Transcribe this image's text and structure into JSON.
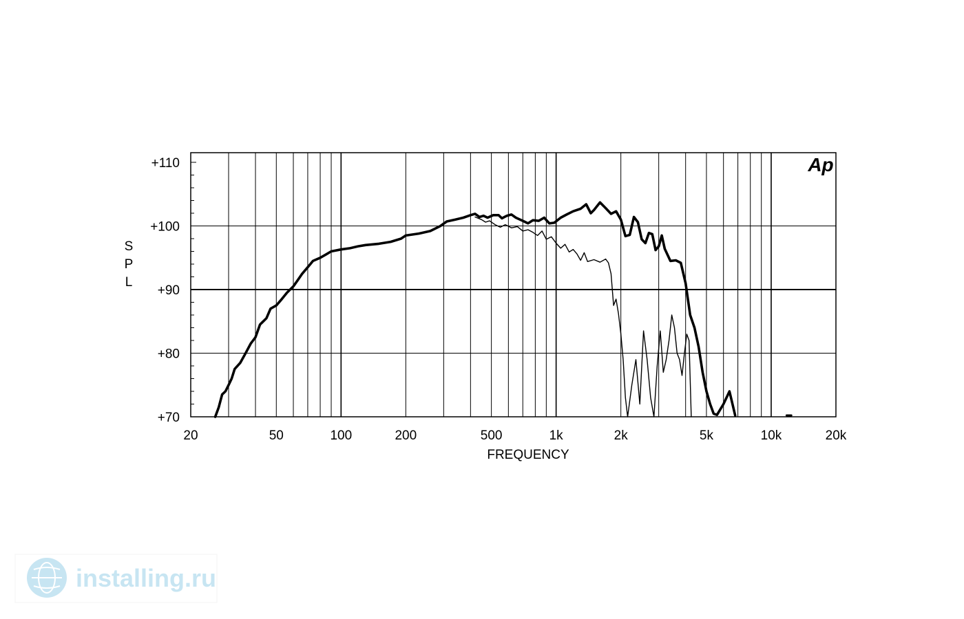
{
  "chart_data": {
    "type": "line",
    "title": "",
    "xlabel": "FREQUENCY",
    "ylabel": "SPL",
    "xscale": "log",
    "xlim": [
      20,
      20000
    ],
    "ylim": [
      70,
      111
    ],
    "grid": true,
    "x_ticks": [
      {
        "value": 20,
        "label": "20"
      },
      {
        "value": 50,
        "label": "50"
      },
      {
        "value": 100,
        "label": "100"
      },
      {
        "value": 200,
        "label": "200"
      },
      {
        "value": 500,
        "label": "500"
      },
      {
        "value": 1000,
        "label": "1k"
      },
      {
        "value": 2000,
        "label": "2k"
      },
      {
        "value": 5000,
        "label": "5k"
      },
      {
        "value": 10000,
        "label": "10k"
      },
      {
        "value": 20000,
        "label": "20k"
      }
    ],
    "y_ticks": [
      {
        "value": 70,
        "label": "+70"
      },
      {
        "value": 80,
        "label": "+80"
      },
      {
        "value": 90,
        "label": "+90"
      },
      {
        "value": 100,
        "label": "+100"
      },
      {
        "value": 110,
        "label": "+110"
      }
    ],
    "series": [
      {
        "style": "thick",
        "points": [
          [
            26,
            70
          ],
          [
            27,
            71.5
          ],
          [
            28,
            73.5
          ],
          [
            29,
            74
          ],
          [
            30,
            75
          ],
          [
            31,
            76
          ],
          [
            32,
            77.5
          ],
          [
            34,
            78.5
          ],
          [
            36,
            80
          ],
          [
            38,
            81.5
          ],
          [
            40,
            82.5
          ],
          [
            42,
            84.5
          ],
          [
            45,
            85.5
          ],
          [
            47,
            87
          ],
          [
            50,
            87.5
          ],
          [
            53,
            88.5
          ],
          [
            56,
            89.5
          ],
          [
            60,
            90.5
          ],
          [
            63,
            91.5
          ],
          [
            66,
            92.5
          ],
          [
            70,
            93.5
          ],
          [
            74,
            94.5
          ],
          [
            80,
            95
          ],
          [
            85,
            95.5
          ],
          [
            90,
            96
          ],
          [
            100,
            96.3
          ],
          [
            110,
            96.5
          ],
          [
            120,
            96.8
          ],
          [
            130,
            97
          ],
          [
            150,
            97.2
          ],
          [
            170,
            97.5
          ],
          [
            190,
            98
          ],
          [
            200,
            98.5
          ],
          [
            230,
            98.8
          ],
          [
            260,
            99.2
          ],
          [
            290,
            100
          ],
          [
            310,
            100.7
          ],
          [
            340,
            101
          ],
          [
            370,
            101.3
          ],
          [
            400,
            101.7
          ],
          [
            420,
            101.9
          ],
          [
            440,
            101.4
          ],
          [
            460,
            101.6
          ],
          [
            480,
            101.3
          ],
          [
            510,
            101.7
          ],
          [
            540,
            101.7
          ],
          [
            560,
            101.2
          ],
          [
            590,
            101.6
          ],
          [
            620,
            101.8
          ],
          [
            650,
            101.3
          ],
          [
            700,
            100.8
          ],
          [
            740,
            100.4
          ],
          [
            780,
            100.9
          ],
          [
            830,
            100.8
          ],
          [
            880,
            101.3
          ],
          [
            930,
            100.4
          ],
          [
            980,
            100.5
          ],
          [
            1050,
            101.3
          ],
          [
            1120,
            101.8
          ],
          [
            1200,
            102.3
          ],
          [
            1300,
            102.7
          ],
          [
            1380,
            103.4
          ],
          [
            1450,
            102
          ],
          [
            1500,
            102.5
          ],
          [
            1600,
            103.7
          ],
          [
            1700,
            102.8
          ],
          [
            1800,
            101.9
          ],
          [
            1900,
            102.3
          ],
          [
            2000,
            101
          ],
          [
            2100,
            98.4
          ],
          [
            2200,
            98.6
          ],
          [
            2300,
            101.4
          ],
          [
            2400,
            100.6
          ],
          [
            2500,
            97.9
          ],
          [
            2600,
            97.3
          ],
          [
            2700,
            98.9
          ],
          [
            2800,
            98.7
          ],
          [
            2900,
            96.2
          ],
          [
            3000,
            96.8
          ],
          [
            3100,
            98.5
          ],
          [
            3200,
            96.4
          ],
          [
            3400,
            94.5
          ],
          [
            3600,
            94.6
          ],
          [
            3800,
            94.2
          ],
          [
            4000,
            91
          ],
          [
            4200,
            86
          ],
          [
            4400,
            84
          ],
          [
            4600,
            81
          ],
          [
            4800,
            77
          ],
          [
            5000,
            74
          ],
          [
            5200,
            72
          ],
          [
            5400,
            70.5
          ],
          [
            5600,
            70.3
          ],
          [
            6000,
            72
          ],
          [
            6400,
            74
          ],
          [
            6800,
            70.2
          ]
        ]
      },
      {
        "style": "thin",
        "points": [
          [
            420,
            101.4
          ],
          [
            450,
            101
          ],
          [
            470,
            100.6
          ],
          [
            490,
            100.8
          ],
          [
            520,
            100.2
          ],
          [
            550,
            99.8
          ],
          [
            580,
            100.2
          ],
          [
            620,
            99.7
          ],
          [
            660,
            99.9
          ],
          [
            700,
            99.2
          ],
          [
            740,
            99.4
          ],
          [
            780,
            99
          ],
          [
            820,
            98.5
          ],
          [
            860,
            99.2
          ],
          [
            900,
            97.9
          ],
          [
            950,
            98.3
          ],
          [
            1000,
            97.3
          ],
          [
            1050,
            96.5
          ],
          [
            1100,
            97.1
          ],
          [
            1150,
            95.9
          ],
          [
            1200,
            96.3
          ],
          [
            1250,
            95.6
          ],
          [
            1300,
            94.6
          ],
          [
            1350,
            95.8
          ],
          [
            1400,
            94.4
          ],
          [
            1500,
            94.7
          ],
          [
            1600,
            94.3
          ],
          [
            1700,
            94.8
          ],
          [
            1750,
            94.2
          ],
          [
            1800,
            92.5
          ],
          [
            1850,
            87.5
          ],
          [
            1900,
            88.5
          ],
          [
            1950,
            86.2
          ],
          [
            2000,
            83
          ],
          [
            2050,
            79
          ],
          [
            2100,
            73
          ],
          [
            2150,
            70
          ],
          [
            2250,
            75
          ],
          [
            2350,
            79
          ],
          [
            2450,
            72
          ],
          [
            2550,
            83.5
          ],
          [
            2650,
            79
          ],
          [
            2750,
            73
          ],
          [
            2850,
            70
          ],
          [
            2950,
            78
          ],
          [
            3050,
            83.5
          ],
          [
            3150,
            77
          ],
          [
            3250,
            79
          ],
          [
            3350,
            82
          ],
          [
            3450,
            86
          ],
          [
            3550,
            84
          ],
          [
            3650,
            80
          ],
          [
            3750,
            79
          ],
          [
            3850,
            76.5
          ],
          [
            3950,
            80
          ],
          [
            4050,
            83
          ],
          [
            4150,
            82
          ],
          [
            4250,
            70
          ]
        ]
      }
    ]
  },
  "logo": {
    "text": "Ap"
  },
  "watermark": {
    "text": "installing.ru",
    "icon": "globe-icon"
  },
  "colors": {
    "line": "#000000",
    "grid": "#000000",
    "watermark": "#c7e5f2"
  }
}
